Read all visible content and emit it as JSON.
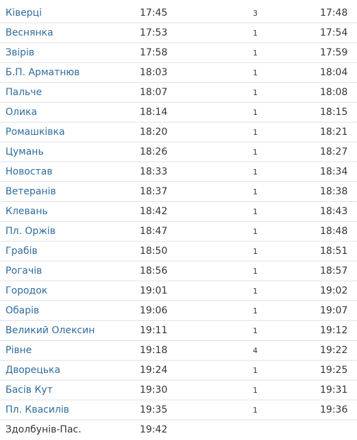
{
  "schedule": {
    "rows": [
      {
        "station": "Ківерці",
        "arrival": "17:45",
        "stop": "3",
        "departure": "17:48"
      },
      {
        "station": "Веснянка",
        "arrival": "17:53",
        "stop": "1",
        "departure": "17:54"
      },
      {
        "station": "Звірів",
        "arrival": "17:58",
        "stop": "1",
        "departure": "17:59"
      },
      {
        "station": "Б.П. Арматнюв",
        "arrival": "18:03",
        "stop": "1",
        "departure": "18:04"
      },
      {
        "station": "Пальче",
        "arrival": "18:07",
        "stop": "1",
        "departure": "18:08"
      },
      {
        "station": "Олика",
        "arrival": "18:14",
        "stop": "1",
        "departure": "18:15"
      },
      {
        "station": "Ромашківка",
        "arrival": "18:20",
        "stop": "1",
        "departure": "18:21"
      },
      {
        "station": "Цумань",
        "arrival": "18:26",
        "stop": "1",
        "departure": "18:27"
      },
      {
        "station": "Новостав",
        "arrival": "18:33",
        "stop": "1",
        "departure": "18:34"
      },
      {
        "station": "Ветеранів",
        "arrival": "18:37",
        "stop": "1",
        "departure": "18:38"
      },
      {
        "station": "Клевань",
        "arrival": "18:42",
        "stop": "1",
        "departure": "18:43"
      },
      {
        "station": "Пл. Оржів",
        "arrival": "18:47",
        "stop": "1",
        "departure": "18:48"
      },
      {
        "station": "Грабів",
        "arrival": "18:50",
        "stop": "1",
        "departure": "18:51"
      },
      {
        "station": "Рогачів",
        "arrival": "18:56",
        "stop": "1",
        "departure": "18:57"
      },
      {
        "station": "Городок",
        "arrival": "19:01",
        "stop": "1",
        "departure": "19:02"
      },
      {
        "station": "Обарів",
        "arrival": "19:06",
        "stop": "1",
        "departure": "19:07"
      },
      {
        "station": "Великий Олексин",
        "arrival": "19:11",
        "stop": "1",
        "departure": "19:12"
      },
      {
        "station": "Рівне",
        "arrival": "19:18",
        "stop": "4",
        "departure": "19:22"
      },
      {
        "station": "Дворецька",
        "arrival": "19:24",
        "stop": "1",
        "departure": "19:25"
      },
      {
        "station": "Басів Кут",
        "arrival": "19:30",
        "stop": "1",
        "departure": "19:31"
      },
      {
        "station": "Пл. Квасилів",
        "arrival": "19:35",
        "stop": "1",
        "departure": "19:36"
      },
      {
        "station": "Здолбунів-Пас.",
        "arrival": "19:42",
        "stop": "",
        "departure": ""
      }
    ]
  }
}
